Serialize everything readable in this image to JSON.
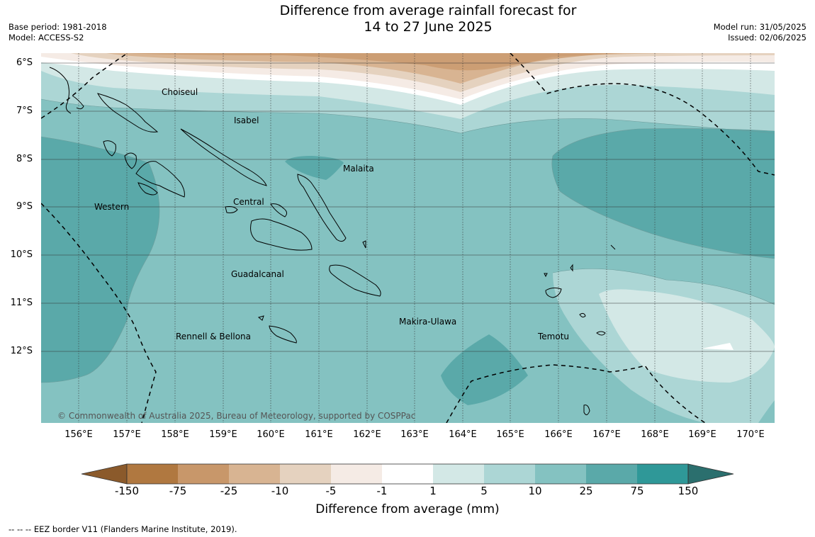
{
  "title": {
    "line1": "Difference from average rainfall forecast for",
    "line2": "14 to 27 June 2025"
  },
  "meta_left": {
    "base_period": "Base period: 1981-2018",
    "model": "Model: ACCESS-S2"
  },
  "meta_right": {
    "model_run": "Model run: 31/05/2025",
    "issued": "Issued: 02/06/2025"
  },
  "map": {
    "lat_labels": [
      "6°S",
      "7°S",
      "8°S",
      "9°S",
      "10°S",
      "11°S",
      "12°S"
    ],
    "lon_labels": [
      "156°E",
      "157°E",
      "158°E",
      "159°E",
      "160°E",
      "161°E",
      "162°E",
      "163°E",
      "164°E",
      "165°E",
      "166°E",
      "167°E",
      "168°E",
      "169°E",
      "170°E"
    ],
    "regions": [
      "Choiseul",
      "Isabel",
      "Malaita",
      "Western",
      "Central",
      "Guadalcanal",
      "Makira-Ulawa",
      "Rennell & Bellona",
      "Temotu"
    ],
    "copyright": "© Commonwealth of Australia 2025, Bureau of Meteorology, supported by COSPPac"
  },
  "colorbar": {
    "title": "Difference from average (mm)",
    "ticks": [
      "-150",
      "-75",
      "-25",
      "-10",
      "-5",
      "-1",
      "1",
      "5",
      "10",
      "25",
      "75",
      "150"
    ],
    "colors": [
      "#8b5a2b",
      "#b07840",
      "#c8976a",
      "#d8b492",
      "#e5d2bf",
      "#f5ebe5",
      "#ffffff",
      "#d3e8e6",
      "#acd6d5",
      "#84c2c1",
      "#5aa9a9",
      "#2f9898",
      "#2b6f6e"
    ]
  },
  "footer": {
    "eez_note": "--  --  -- EEZ border V11 (Flanders Marine Institute, 2019)."
  }
}
